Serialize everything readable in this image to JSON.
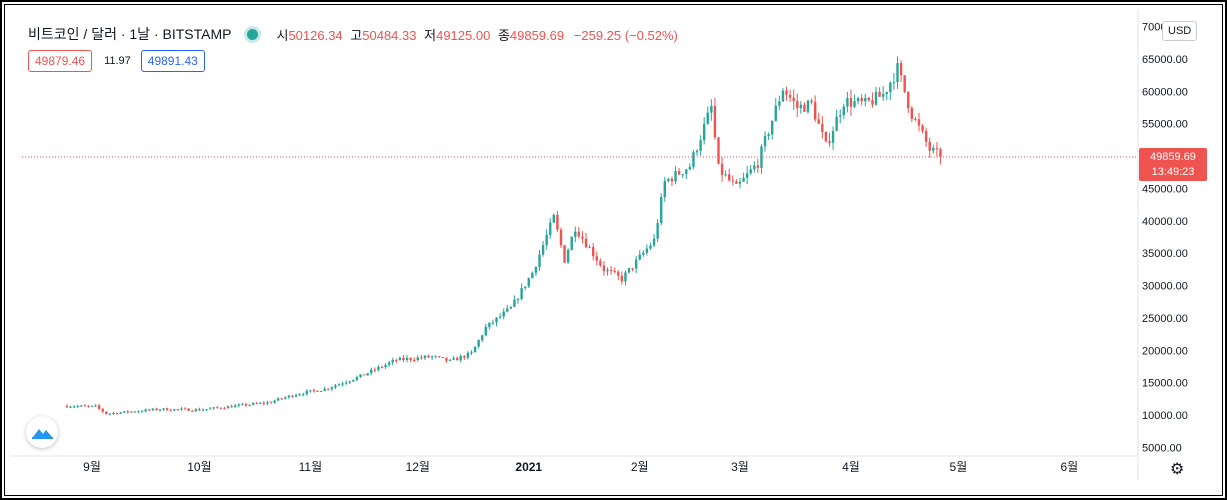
{
  "header": {
    "symbol": "비트코인 / 달러 · 1날 · BITSTAMP",
    "open_label": "시",
    "open": "50126.34",
    "high_label": "고",
    "high": "50484.33",
    "low_label": "저",
    "low": "49125.00",
    "close_label": "종",
    "close": "49859.69",
    "change": "−259.25 (−0.52%)"
  },
  "quote": {
    "sell": "49879.46",
    "spread": "11.97",
    "buy": "49891.43"
  },
  "currency": "USD",
  "last_price": {
    "price": "49859.69",
    "countdown": "13:49:23"
  },
  "icons": {
    "logo": "tradingview-cloud-icon",
    "settings": "gear-icon"
  },
  "colors": {
    "up": "#26a69a",
    "down": "#ef5350",
    "last_price_line": "#ef5350"
  },
  "chart_data": {
    "type": "candlestick",
    "title": "비트코인 / 달러 · 1날 · BITSTAMP",
    "y_axis": {
      "min": 5000,
      "max": 70000,
      "step": 5000,
      "ticks": [
        "5000.00",
        "10000.00",
        "15000.00",
        "20000.00",
        "25000.00",
        "30000.00",
        "35000.00",
        "40000.00",
        "45000.00",
        "50000.00",
        "55000.00",
        "60000.00",
        "65000.00",
        "70000.00"
      ]
    },
    "x_axis": {
      "start": "2020-08-25",
      "end": "2021-06-25",
      "ticks": [
        {
          "date": "2020-09-01",
          "label": "9월"
        },
        {
          "date": "2020-10-01",
          "label": "10월"
        },
        {
          "date": "2020-11-01",
          "label": "11월"
        },
        {
          "date": "2020-12-01",
          "label": "12월"
        },
        {
          "date": "2021-01-01",
          "label": "2021"
        },
        {
          "date": "2021-02-01",
          "label": "2월"
        },
        {
          "date": "2021-03-01",
          "label": "3월"
        },
        {
          "date": "2021-04-01",
          "label": "4월"
        },
        {
          "date": "2021-05-01",
          "label": "5월"
        },
        {
          "date": "2021-06-01",
          "label": "6월"
        }
      ]
    },
    "last_price": 49859.69,
    "grid": false,
    "close_path": [
      {
        "date": "2020-08-25",
        "close": 11400
      },
      {
        "date": "2020-09-02",
        "close": 11300
      },
      {
        "date": "2020-09-05",
        "close": 10200
      },
      {
        "date": "2020-09-20",
        "close": 10900
      },
      {
        "date": "2020-10-01",
        "close": 10800
      },
      {
        "date": "2020-10-20",
        "close": 11900
      },
      {
        "date": "2020-10-28",
        "close": 13200
      },
      {
        "date": "2020-11-05",
        "close": 14000
      },
      {
        "date": "2020-11-15",
        "close": 16000
      },
      {
        "date": "2020-11-25",
        "close": 18500
      },
      {
        "date": "2020-12-05",
        "close": 19000
      },
      {
        "date": "2020-12-10",
        "close": 18300
      },
      {
        "date": "2020-12-16",
        "close": 19500
      },
      {
        "date": "2020-12-20",
        "close": 23500
      },
      {
        "date": "2020-12-27",
        "close": 26500
      },
      {
        "date": "2021-01-02",
        "close": 32000
      },
      {
        "date": "2021-01-08",
        "close": 40500
      },
      {
        "date": "2021-01-11",
        "close": 34000
      },
      {
        "date": "2021-01-14",
        "close": 39000
      },
      {
        "date": "2021-01-22",
        "close": 32500
      },
      {
        "date": "2021-01-27",
        "close": 31000
      },
      {
        "date": "2021-01-30",
        "close": 33000
      },
      {
        "date": "2021-02-05",
        "close": 37000
      },
      {
        "date": "2021-02-08",
        "close": 46000
      },
      {
        "date": "2021-02-15",
        "close": 48500
      },
      {
        "date": "2021-02-21",
        "close": 57500
      },
      {
        "date": "2021-02-23",
        "close": 48000
      },
      {
        "date": "2021-02-28",
        "close": 45000
      },
      {
        "date": "2021-03-06",
        "close": 49000
      },
      {
        "date": "2021-03-13",
        "close": 60500
      },
      {
        "date": "2021-03-17",
        "close": 57500
      },
      {
        "date": "2021-03-21",
        "close": 58000
      },
      {
        "date": "2021-03-25",
        "close": 51500
      },
      {
        "date": "2021-03-30",
        "close": 58500
      },
      {
        "date": "2021-04-05",
        "close": 58000
      },
      {
        "date": "2021-04-10",
        "close": 59500
      },
      {
        "date": "2021-04-14",
        "close": 63500
      },
      {
        "date": "2021-04-18",
        "close": 56500
      },
      {
        "date": "2021-04-23",
        "close": 51000
      },
      {
        "date": "2021-04-26",
        "close": 49859.69
      }
    ]
  }
}
